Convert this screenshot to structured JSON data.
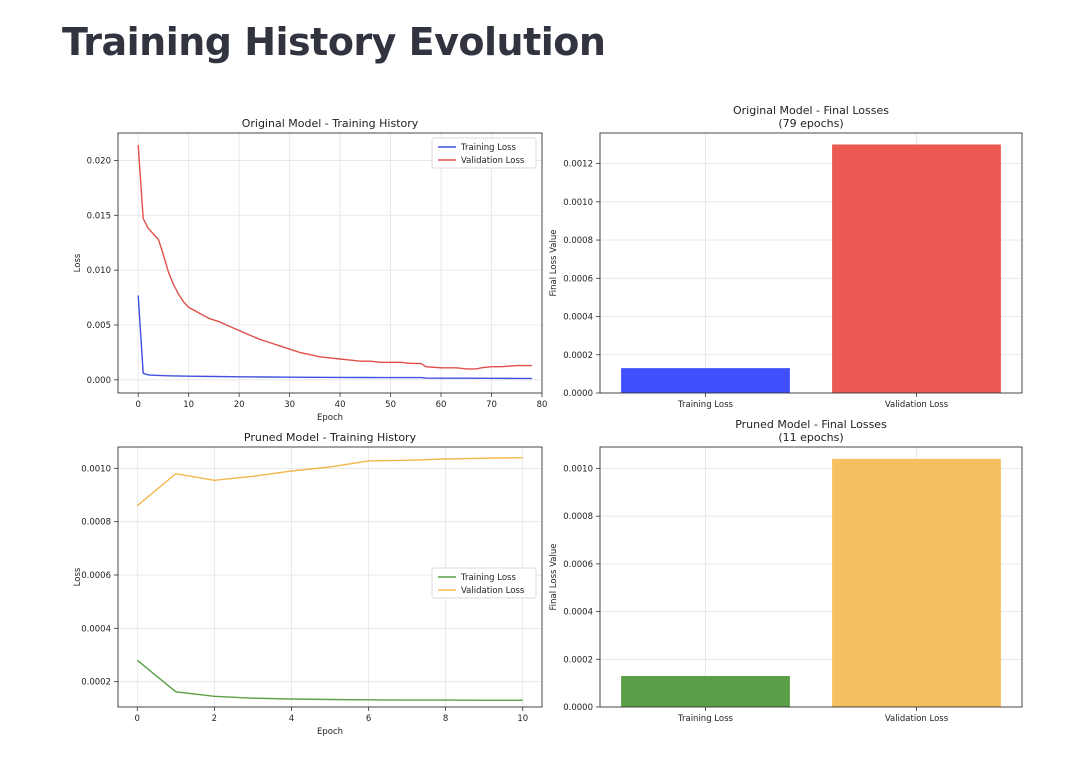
{
  "page": {
    "title": "Training History Evolution"
  },
  "chart_data": [
    {
      "type": "line",
      "title": "Original Model - Training History",
      "xlabel": "Epoch",
      "ylabel": "Loss",
      "xlim": [
        -4,
        80
      ],
      "ylim": [
        -0.0012,
        0.0225
      ],
      "xticks": [
        0,
        10,
        20,
        30,
        40,
        50,
        60,
        70,
        80
      ],
      "yticks": [
        0.0,
        0.005,
        0.01,
        0.015,
        0.02
      ],
      "ytick_format": "fixed3",
      "grid": true,
      "legend": "top-right",
      "series": [
        {
          "name": "Training Loss",
          "color": "#4150e0",
          "x": [
            0,
            1,
            2,
            4,
            6,
            10,
            15,
            20,
            25,
            30,
            35,
            40,
            45,
            50,
            55,
            56,
            57,
            60,
            65,
            70,
            75,
            78
          ],
          "y": [
            0.0077,
            0.0006,
            0.00045,
            0.0004,
            0.00037,
            0.00033,
            0.0003,
            0.00028,
            0.00026,
            0.00024,
            0.00023,
            0.00022,
            0.00021,
            0.0002,
            0.0002,
            0.0002,
            0.00016,
            0.00015,
            0.00015,
            0.00014,
            0.00013,
            0.00013
          ]
        },
        {
          "name": "Validation Loss",
          "color": "#e0504a",
          "x": [
            0,
            1,
            2,
            3,
            4,
            5,
            6,
            7,
            8,
            9,
            10,
            12,
            14,
            16,
            18,
            20,
            22,
            24,
            26,
            28,
            30,
            32,
            34,
            36,
            38,
            40,
            42,
            44,
            46,
            48,
            50,
            52,
            54,
            56,
            57,
            60,
            63,
            65,
            67,
            68,
            70,
            72,
            75,
            78
          ],
          "y": [
            0.0214,
            0.0147,
            0.0138,
            0.0133,
            0.0128,
            0.0114,
            0.0098,
            0.0087,
            0.0078,
            0.0071,
            0.0066,
            0.0061,
            0.0056,
            0.0053,
            0.0049,
            0.0045,
            0.0041,
            0.0037,
            0.0034,
            0.0031,
            0.0028,
            0.0025,
            0.0023,
            0.0021,
            0.002,
            0.0019,
            0.0018,
            0.0017,
            0.0017,
            0.0016,
            0.0016,
            0.0016,
            0.0015,
            0.0015,
            0.0012,
            0.0011,
            0.0011,
            0.001,
            0.001,
            0.0011,
            0.0012,
            0.0012,
            0.0013,
            0.0013
          ]
        }
      ]
    },
    {
      "type": "bar",
      "title": "Original Model - Final Losses\n(79 epochs)",
      "xlabel": "",
      "ylabel": "Final Loss Value",
      "categories": [
        "Training Loss",
        "Validation Loss"
      ],
      "values": [
        0.00013,
        0.0013
      ],
      "colors": [
        "#4150ff",
        "#ea5a52"
      ],
      "ylim": [
        0,
        0.00136
      ],
      "yticks": [
        0.0,
        0.0002,
        0.0004,
        0.0006,
        0.0008,
        0.001,
        0.0012
      ],
      "ytick_format": "fixed4",
      "grid": true
    },
    {
      "type": "line",
      "title": "Pruned Model - Training History",
      "xlabel": "Epoch",
      "ylabel": "Loss",
      "xlim": [
        -0.5,
        10.5
      ],
      "ylim": [
        0.000105,
        0.00108
      ],
      "xticks": [
        0,
        2,
        4,
        6,
        8,
        10
      ],
      "yticks": [
        0.0002,
        0.0004,
        0.0006,
        0.0008,
        0.001
      ],
      "ytick_format": "fixed4",
      "grid": true,
      "legend": "center-right",
      "series": [
        {
          "name": "Training Loss",
          "color": "#5aa046",
          "x": [
            0,
            1,
            2,
            3,
            4,
            5,
            6,
            7,
            8,
            9,
            10
          ],
          "y": [
            0.00028,
            0.000162,
            0.000145,
            0.000138,
            0.000135,
            0.000133,
            0.000132,
            0.000131,
            0.000131,
            0.00013,
            0.00013
          ]
        },
        {
          "name": "Validation Loss",
          "color": "#f2b84d",
          "x": [
            0,
            1,
            2,
            3,
            4,
            5,
            6,
            7,
            8,
            9,
            10
          ],
          "y": [
            0.00086,
            0.00098,
            0.000955,
            0.00097,
            0.00099,
            0.001005,
            0.001028,
            0.00103,
            0.001035,
            0.001038,
            0.00104
          ]
        }
      ]
    },
    {
      "type": "bar",
      "title": "Pruned Model - Final Losses\n(11 epochs)",
      "xlabel": "",
      "ylabel": "Final Loss Value",
      "categories": [
        "Training Loss",
        "Validation Loss"
      ],
      "values": [
        0.00013,
        0.00104
      ],
      "colors": [
        "#5a9e48",
        "#f5c060"
      ],
      "ylim": [
        0,
        0.00109
      ],
      "yticks": [
        0.0,
        0.0002,
        0.0004,
        0.0006,
        0.0008,
        0.001
      ],
      "ytick_format": "fixed4",
      "grid": true
    }
  ]
}
